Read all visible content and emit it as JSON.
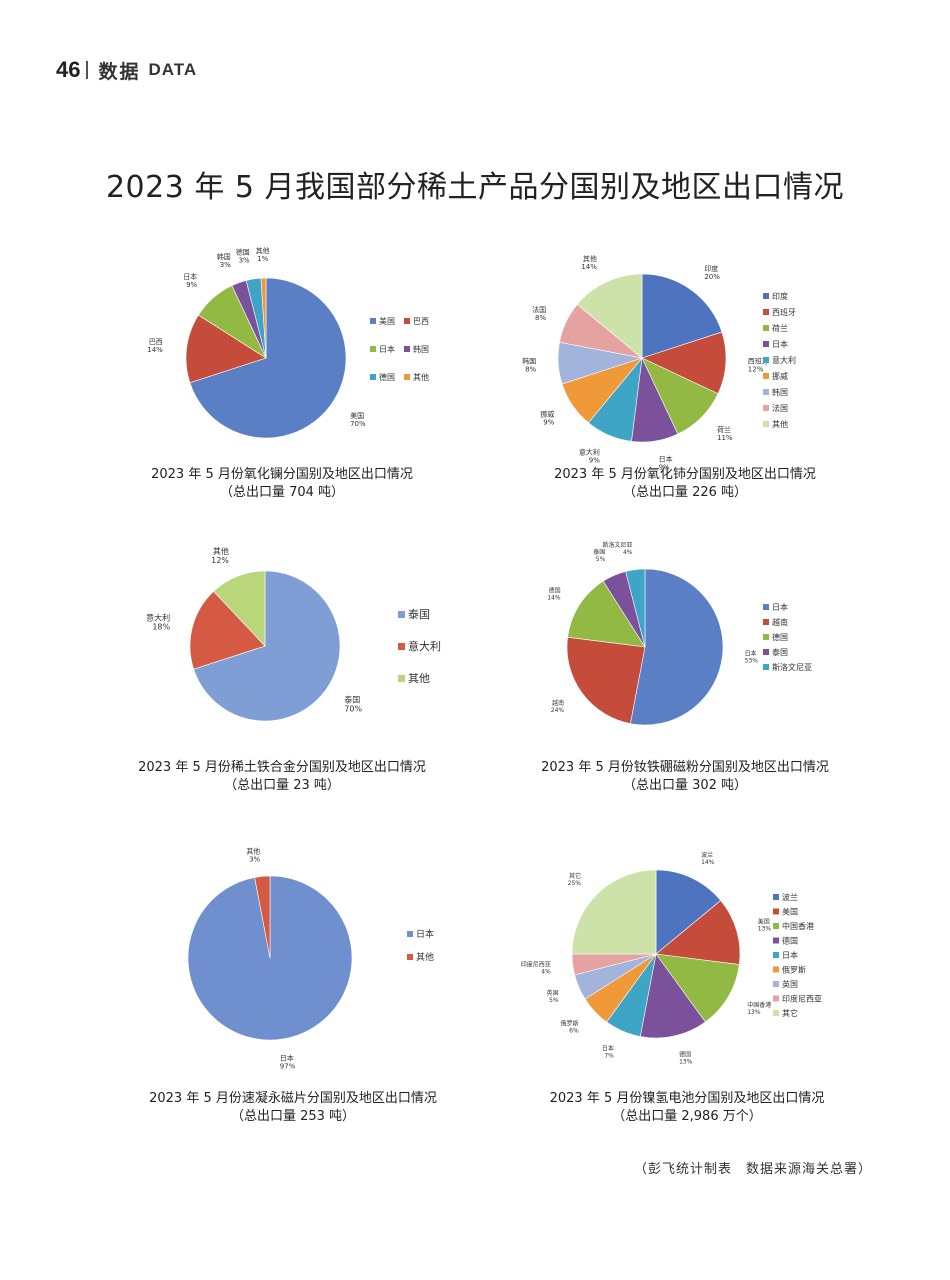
{
  "header": {
    "page_number": "46",
    "section_cn": "数据",
    "section_en": "DATA"
  },
  "page_title": "2023 年 5 月我国部分稀土产品分国别及地区出口情况",
  "chart_data": [
    {
      "type": "pie",
      "title": "2023 年 5 月份氧化镧分国别及地区出口情况",
      "subtitle": "（总出口量 704 吨）",
      "categories": [
        "美国",
        "巴西",
        "日本",
        "韩国",
        "德国",
        "其他"
      ],
      "values": [
        70,
        14,
        9,
        3,
        3,
        1
      ],
      "labels": [
        "70%",
        "14%",
        "9%",
        "3%",
        "3%",
        "1%"
      ],
      "colors": [
        "#5b7fc5",
        "#c54c3b",
        "#93b945",
        "#7a519a",
        "#3fa5c6",
        "#ef9939"
      ],
      "legend": "right, two columns"
    },
    {
      "type": "pie",
      "title": "2023 年 5 月份氧化铈分国别及地区出口情况",
      "subtitle": "（总出口量 226 吨）",
      "categories": [
        "印度",
        "西班牙",
        "荷兰",
        "日本",
        "意大利",
        "挪威",
        "韩国",
        "法国",
        "其他"
      ],
      "values": [
        20,
        12,
        11,
        9,
        9,
        9,
        8,
        8,
        14
      ],
      "labels": [
        "20%",
        "12%",
        "11%",
        "9%",
        "9%",
        "9%",
        "8%",
        "8%",
        "14%"
      ],
      "colors": [
        "#4f74bf",
        "#c54c3b",
        "#93b945",
        "#7a519a",
        "#3fa5c6",
        "#ef9939",
        "#a3b4dc",
        "#e4a3a0",
        "#cde2a8"
      ],
      "legend": "right"
    },
    {
      "type": "pie",
      "title": "2023 年 5 月份稀土铁合金分国别及地区出口情况",
      "subtitle": "（总出口量 23 吨）",
      "categories": [
        "泰国",
        "意大利",
        "其他"
      ],
      "values": [
        70,
        18,
        12
      ],
      "labels": [
        "70%",
        "18%",
        "12%"
      ],
      "colors": [
        "#7f9ed5",
        "#d45a43",
        "#b9d67a"
      ],
      "legend": "right"
    },
    {
      "type": "pie",
      "title": "2023 年 5 月份钕铁硼磁粉分国别及地区出口情况",
      "subtitle": "（总出口量 302 吨）",
      "categories": [
        "日本",
        "越南",
        "德国",
        "泰国",
        "斯洛文尼亚"
      ],
      "values": [
        53,
        24,
        14,
        5,
        4
      ],
      "labels": [
        "53%",
        "24%",
        "14%",
        "5%",
        "4%"
      ],
      "colors": [
        "#5b7fc5",
        "#c54c3b",
        "#93b945",
        "#7a519a",
        "#3fa5c6"
      ],
      "legend": "right"
    },
    {
      "type": "pie",
      "title": "2023 年 5 月份速凝永磁片分国别及地区出口情况",
      "subtitle": "（总出口量 253 吨）",
      "categories": [
        "日本",
        "其他"
      ],
      "values": [
        97,
        3
      ],
      "labels": [
        "97%",
        "3%"
      ],
      "colors": [
        "#6f8fcf",
        "#d45a43"
      ],
      "legend": "right"
    },
    {
      "type": "pie",
      "title": "2023 年 5 月份镍氢电池分国别及地区出口情况",
      "subtitle": "（总出口量 2,986 万个）",
      "categories": [
        "波兰",
        "美国",
        "中国香港",
        "德国",
        "日本",
        "俄罗斯",
        "英国",
        "印度尼西亚",
        "其它"
      ],
      "values": [
        14,
        13,
        13,
        13,
        7,
        6,
        5,
        4,
        25
      ],
      "labels": [
        "14%",
        "13%",
        "13%",
        "13%",
        "7%",
        "6%",
        "5%",
        "4%",
        "25%"
      ],
      "colors": [
        "#4f74bf",
        "#c54c3b",
        "#93b945",
        "#7a519a",
        "#3fa5c6",
        "#ef9939",
        "#a3b4dc",
        "#e4a3a0",
        "#cde2a8"
      ],
      "legend": "right"
    }
  ],
  "footer": {
    "source": "（彭飞统计制表　数据来源海关总署）"
  }
}
